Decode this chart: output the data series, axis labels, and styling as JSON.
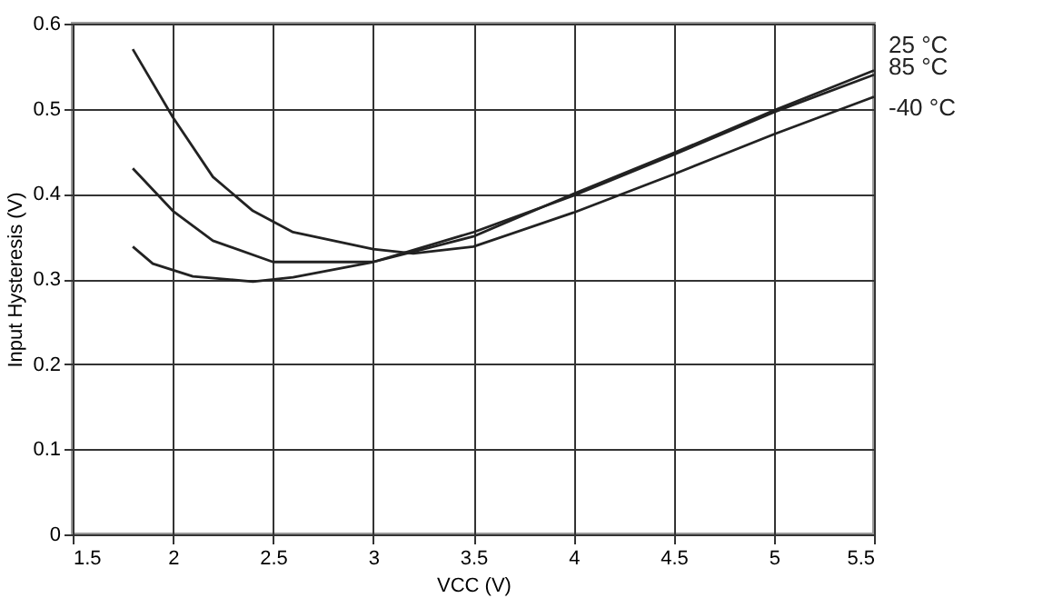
{
  "chart_data": {
    "type": "line",
    "xlabel": "VCC (V)",
    "ylabel": "Input Hysteresis (V)",
    "xlim": [
      1.5,
      5.5
    ],
    "xticks": [
      1.5,
      2,
      2.5,
      3,
      3.5,
      4,
      4.5,
      5,
      5.5
    ],
    "ylim": [
      0,
      0.6
    ],
    "yticks": [
      0,
      0.1,
      0.2,
      0.3,
      0.4,
      0.5,
      0.6
    ],
    "grid": true,
    "marker": "none",
    "line_style": "solid",
    "series": [
      {
        "name": "25 °C",
        "color": "#222222",
        "x": [
          1.8,
          2.0,
          2.2,
          2.5,
          3.0,
          3.5,
          4.0,
          4.5,
          5.0,
          5.5
        ],
        "values": [
          0.43,
          0.38,
          0.345,
          0.32,
          0.32,
          0.35,
          0.4,
          0.448,
          0.498,
          0.545
        ]
      },
      {
        "name": "85 °C",
        "color": "#222222",
        "x": [
          1.8,
          1.9,
          2.1,
          2.4,
          2.6,
          3.0,
          3.5,
          4.0,
          4.5,
          5.0,
          5.5
        ],
        "values": [
          0.338,
          0.318,
          0.303,
          0.297,
          0.302,
          0.32,
          0.355,
          0.398,
          0.446,
          0.496,
          0.54
        ]
      },
      {
        "name": "-40 °C",
        "color": "#222222",
        "x": [
          1.8,
          2.0,
          2.2,
          2.4,
          2.6,
          3.0,
          3.2,
          3.5,
          4.0,
          4.5,
          5.0,
          5.5
        ],
        "values": [
          0.57,
          0.49,
          0.42,
          0.38,
          0.355,
          0.335,
          0.33,
          0.338,
          0.378,
          0.423,
          0.47,
          0.514
        ]
      }
    ]
  }
}
